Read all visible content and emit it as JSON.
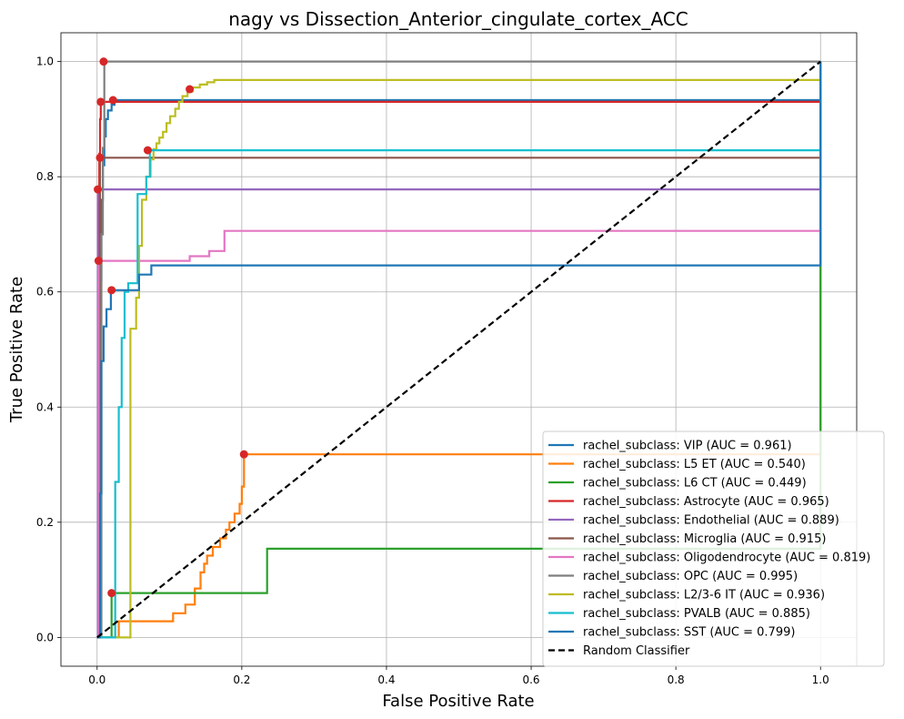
{
  "chart_data": {
    "type": "line",
    "title": "nagy vs Dissection_Anterior_cingulate_cortex_ACC",
    "xlabel": "False Positive Rate",
    "ylabel": "True Positive Rate",
    "xlim": [
      -0.05,
      1.05
    ],
    "ylim": [
      -0.05,
      1.05
    ],
    "grid": true,
    "legend_position": "lower-right",
    "x_ticks": [
      0.0,
      0.2,
      0.4,
      0.6,
      0.8,
      1.0
    ],
    "y_ticks": [
      0.0,
      0.2,
      0.4,
      0.6,
      0.8,
      1.0
    ],
    "x_tick_labels": [
      "0.0",
      "0.2",
      "0.4",
      "0.6",
      "0.8",
      "1.0"
    ],
    "y_tick_labels": [
      "0.0",
      "0.2",
      "0.4",
      "0.6",
      "0.8",
      "1.0"
    ],
    "series": [
      {
        "name": "rachel_subclass: VIP (AUC = 0.961)",
        "color": "#1f77b4",
        "x": [
          0,
          0.004,
          0.004,
          0.006,
          0.006,
          0.008,
          0.008,
          0.01,
          0.01,
          0.012,
          0.012,
          0.015,
          0.015,
          0.02,
          0.02,
          0.024,
          0.024,
          1.0,
          1.0
        ],
        "y": [
          0,
          0,
          0.62,
          0.62,
          0.76,
          0.76,
          0.82,
          0.82,
          0.87,
          0.87,
          0.9,
          0.9,
          0.915,
          0.915,
          0.925,
          0.925,
          0.933,
          0.933,
          1.0
        ]
      },
      {
        "name": "rachel_subclass: L5 ET (AUC = 0.540)",
        "color": "#ff7f0e",
        "x": [
          0,
          0.03,
          0.03,
          0.105,
          0.105,
          0.122,
          0.122,
          0.135,
          0.135,
          0.143,
          0.143,
          0.148,
          0.148,
          0.152,
          0.152,
          0.16,
          0.16,
          0.17,
          0.17,
          0.178,
          0.178,
          0.183,
          0.183,
          0.19,
          0.19,
          0.197,
          0.197,
          0.2,
          0.2,
          0.203,
          0.203,
          1.0,
          1.0
        ],
        "y": [
          0,
          0,
          0.028,
          0.028,
          0.042,
          0.042,
          0.057,
          0.057,
          0.085,
          0.085,
          0.113,
          0.113,
          0.128,
          0.128,
          0.142,
          0.142,
          0.157,
          0.157,
          0.172,
          0.172,
          0.187,
          0.187,
          0.2,
          0.2,
          0.215,
          0.215,
          0.232,
          0.232,
          0.262,
          0.262,
          0.318,
          0.318,
          1.0
        ]
      },
      {
        "name": "rachel_subclass: L6 CT (AUC = 0.449)",
        "color": "#2ca02c",
        "x": [
          0,
          0.02,
          0.02,
          0.235,
          0.235,
          1.0,
          1.0
        ],
        "y": [
          0,
          0,
          0.077,
          0.077,
          0.154,
          0.154,
          1.0
        ]
      },
      {
        "name": "rachel_subclass: Astrocyte (AUC = 0.965)",
        "color": "#d62728",
        "x": [
          0,
          0.003,
          0.003,
          0.004,
          0.004,
          0.005,
          0.005,
          1.0,
          1.0
        ],
        "y": [
          0,
          0,
          0.84,
          0.84,
          0.9,
          0.9,
          0.93,
          0.93,
          1.0
        ]
      },
      {
        "name": "rachel_subclass: Endothelial (AUC = 0.889)",
        "color": "#9467bd",
        "x": [
          0,
          0.001,
          0.001,
          1.0,
          1.0
        ],
        "y": [
          0,
          0,
          0.778,
          0.778,
          1.0
        ]
      },
      {
        "name": "rachel_subclass: Microglia (AUC = 0.915)",
        "color": "#8c564b",
        "x": [
          0,
          0.004,
          0.004,
          1.0,
          1.0
        ],
        "y": [
          0,
          0,
          0.833,
          0.833,
          1.0
        ]
      },
      {
        "name": "rachel_subclass: Oligodendrocyte (AUC = 0.819)",
        "color": "#e377c2",
        "x": [
          0,
          0.002,
          0.002,
          0.128,
          0.128,
          0.155,
          0.155,
          0.176,
          0.176,
          1.0,
          1.0
        ],
        "y": [
          0,
          0,
          0.654,
          0.654,
          0.662,
          0.662,
          0.671,
          0.671,
          0.706,
          0.706,
          1.0
        ]
      },
      {
        "name": "rachel_subclass: OPC (AUC = 0.995)",
        "color": "#7f7f7f",
        "x": [
          0,
          0.006,
          0.006,
          0.008,
          0.008,
          0.01,
          0.01,
          1.0
        ],
        "y": [
          0,
          0,
          0.7,
          0.7,
          0.85,
          0.85,
          1.0,
          1.0
        ]
      },
      {
        "name": "rachel_subclass: L2/3-6 IT (AUC = 0.936)",
        "color": "#bcbd22",
        "x": [
          0,
          0.046,
          0.046,
          0.054,
          0.054,
          0.058,
          0.058,
          0.062,
          0.062,
          0.068,
          0.068,
          0.074,
          0.074,
          0.078,
          0.078,
          0.082,
          0.082,
          0.086,
          0.086,
          0.091,
          0.091,
          0.096,
          0.096,
          0.101,
          0.101,
          0.108,
          0.108,
          0.113,
          0.113,
          0.118,
          0.118,
          0.125,
          0.125,
          0.132,
          0.132,
          0.142,
          0.142,
          0.152,
          0.152,
          0.162,
          0.162,
          0.172,
          0.172,
          1.0,
          1.0
        ],
        "y": [
          0,
          0,
          0.536,
          0.536,
          0.59,
          0.59,
          0.68,
          0.68,
          0.76,
          0.76,
          0.8,
          0.8,
          0.83,
          0.83,
          0.848,
          0.848,
          0.858,
          0.858,
          0.868,
          0.868,
          0.878,
          0.878,
          0.893,
          0.893,
          0.905,
          0.905,
          0.918,
          0.918,
          0.93,
          0.93,
          0.94,
          0.94,
          0.948,
          0.948,
          0.955,
          0.955,
          0.96,
          0.96,
          0.964,
          0.964,
          0.968,
          0.968,
          0.968,
          0.968,
          1.0
        ]
      },
      {
        "name": "rachel_subclass: PVALB (AUC = 0.885)",
        "color": "#17becf",
        "x": [
          0,
          0.025,
          0.025,
          0.03,
          0.03,
          0.034,
          0.034,
          0.038,
          0.038,
          0.043,
          0.043,
          0.056,
          0.056,
          0.068,
          0.068,
          0.073,
          0.073,
          1.0,
          1.0
        ],
        "y": [
          0,
          0,
          0.27,
          0.27,
          0.4,
          0.4,
          0.52,
          0.52,
          0.6,
          0.6,
          0.615,
          0.615,
          0.77,
          0.77,
          0.8,
          0.8,
          0.846,
          0.846,
          1.0
        ]
      },
      {
        "name": "rachel_subclass: SST (AUC = 0.799)",
        "color": "#1f77b4",
        "x": [
          0,
          0.004,
          0.004,
          0.006,
          0.006,
          0.009,
          0.009,
          0.013,
          0.013,
          0.019,
          0.019,
          0.058,
          0.058,
          0.075,
          0.075,
          1.0,
          1.0
        ],
        "y": [
          0,
          0,
          0.25,
          0.25,
          0.48,
          0.48,
          0.54,
          0.54,
          0.57,
          0.57,
          0.603,
          0.603,
          0.63,
          0.63,
          0.646,
          0.646,
          1.0
        ]
      },
      {
        "name": "Random Classifier",
        "color": "#000000",
        "dashed": true,
        "x": [
          0,
          1
        ],
        "y": [
          0,
          1
        ]
      }
    ],
    "markers": {
      "color": "#d62728",
      "points": [
        {
          "x": 0.009,
          "y": 1.0
        },
        {
          "x": 0.005,
          "y": 0.93
        },
        {
          "x": 0.022,
          "y": 0.933
        },
        {
          "x": 0.128,
          "y": 0.952
        },
        {
          "x": 0.07,
          "y": 0.846
        },
        {
          "x": 0.004,
          "y": 0.833
        },
        {
          "x": 0.001,
          "y": 0.778
        },
        {
          "x": 0.002,
          "y": 0.654
        },
        {
          "x": 0.02,
          "y": 0.603
        },
        {
          "x": 0.203,
          "y": 0.318
        },
        {
          "x": 0.02,
          "y": 0.077
        }
      ]
    }
  }
}
